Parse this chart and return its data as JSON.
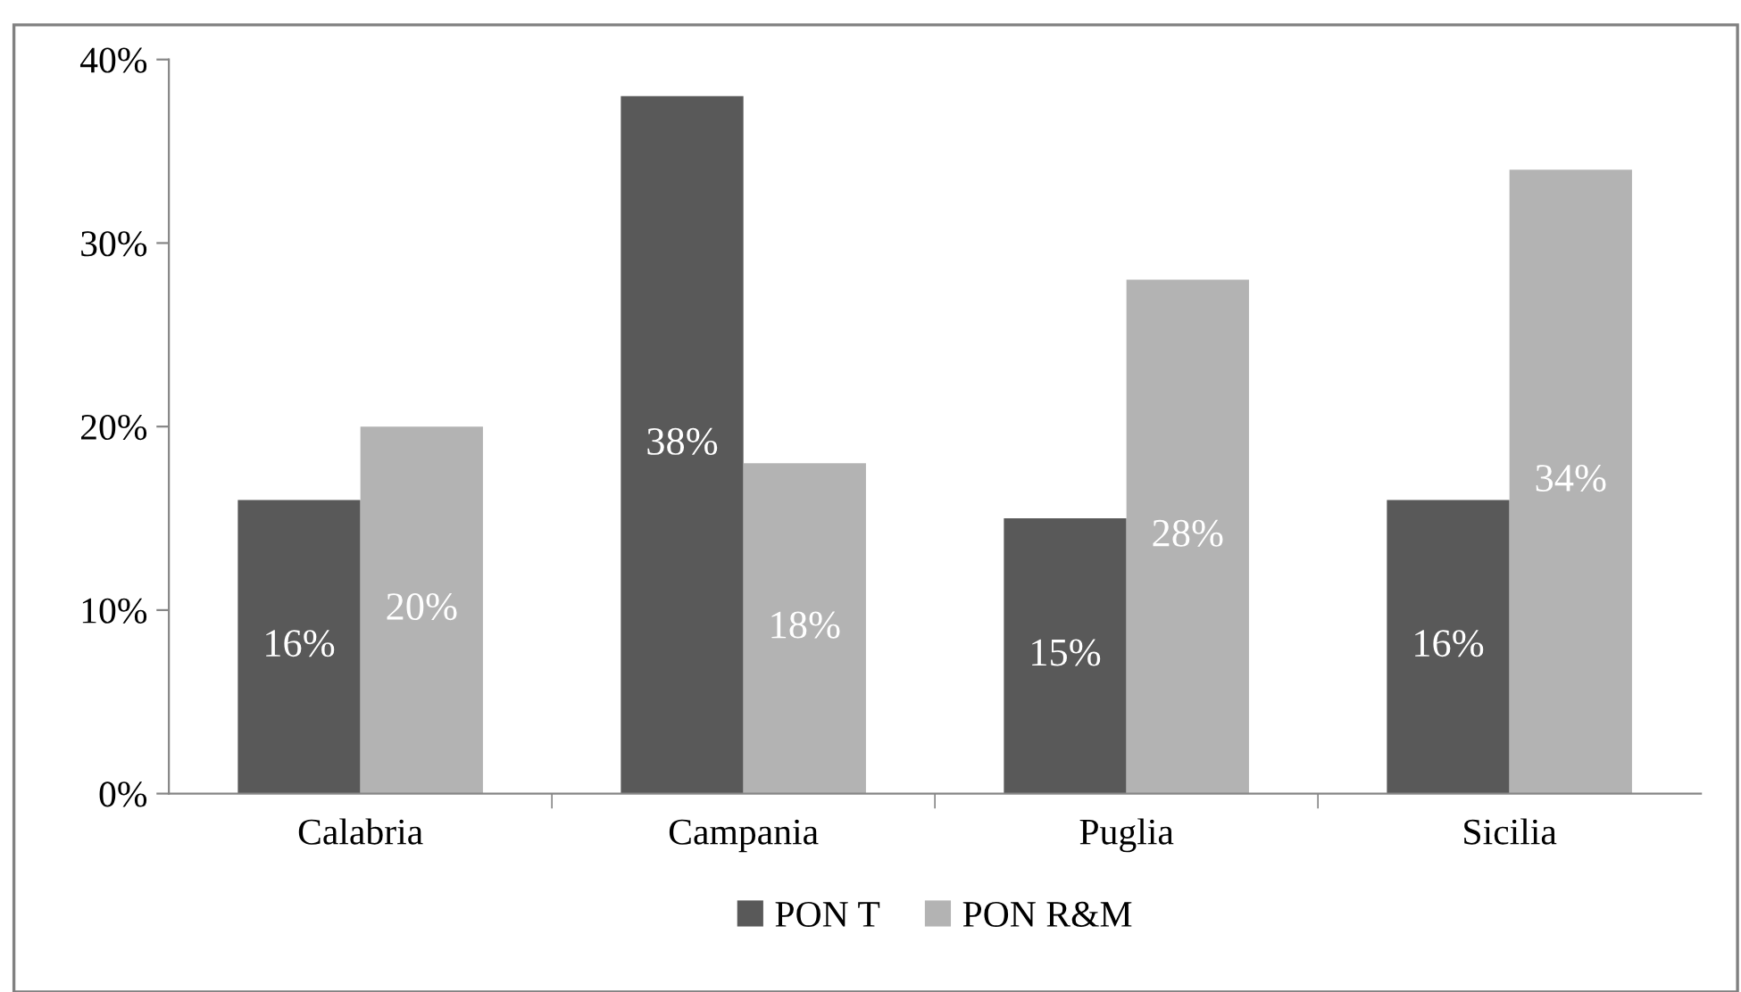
{
  "chart_data": {
    "type": "bar",
    "categories": [
      "Calabria",
      "Campania",
      "Puglia",
      "Sicilia"
    ],
    "series": [
      {
        "name": "PON T",
        "color": "#595959",
        "values": [
          16,
          38,
          15,
          16
        ],
        "value_labels": [
          "16%",
          "38%",
          "15%",
          "16%"
        ]
      },
      {
        "name": "PON R&M",
        "color": "#b3b3b3",
        "values": [
          20,
          18,
          28,
          34
        ],
        "value_labels": [
          "20%",
          "18%",
          "28%",
          "34%"
        ]
      }
    ],
    "ylim": [
      0,
      40
    ],
    "yticks": [
      {
        "value": 0,
        "label": "0%"
      },
      {
        "value": 10,
        "label": "10%"
      },
      {
        "value": 20,
        "label": "20%"
      },
      {
        "value": 30,
        "label": "30%"
      },
      {
        "value": 40,
        "label": "40%"
      }
    ],
    "grid": false,
    "legend": "bottom"
  }
}
